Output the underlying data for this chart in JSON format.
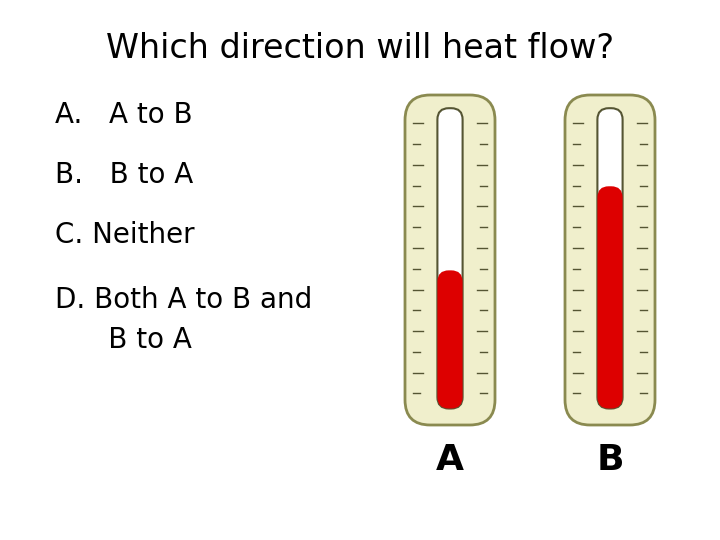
{
  "title": "Which direction will heat flow?",
  "options_line1": [
    "A.   A to B",
    "B.   B to A",
    "C. Neither",
    "D. Both A to B and"
  ],
  "option_D_line2": "      B to A",
  "thermo_bg_color": "#f0efcc",
  "thermo_border_color": "#8a8a50",
  "tube_border_color": "#555533",
  "mercury_color": "#dd0000",
  "thermo_A_label": "A",
  "thermo_B_label": "B",
  "thermo_A_level": 0.46,
  "thermo_B_level": 0.74,
  "background_color": "#ffffff",
  "title_fontsize": 24,
  "option_fontsize": 20,
  "label_fontsize": 26,
  "tick_color": "#555533"
}
